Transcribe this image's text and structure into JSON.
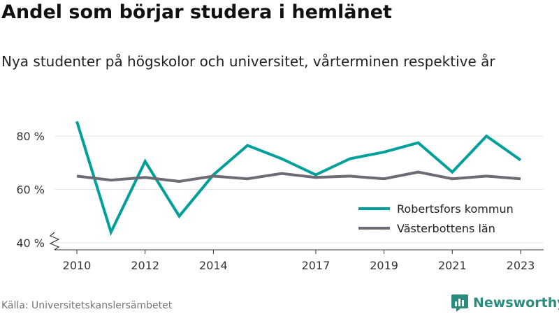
{
  "title": "Andel som börjar studera i hemlänet",
  "subtitle": "Nya studenter på högskolor och universitet, vårterminen respektive år",
  "source": "Källa: Universitetskanslersämbetet",
  "brand": "Newsworthy",
  "colors": {
    "series1": "#00a09a",
    "series2": "#6d6b73",
    "axis": "#333333",
    "grid": "#e6e6e6",
    "brand": "#2a8c7e"
  },
  "chart_data": {
    "type": "line",
    "title": "Andel som börjar studera i hemlänet",
    "ylabel": "",
    "xlabel": "",
    "xlim": [
      2010,
      2023
    ],
    "ylim": [
      40,
      85
    ],
    "y_axis_break": true,
    "grid": "horizontal",
    "legend_position": "bottom-right",
    "x_ticks": [
      2010,
      2012,
      2014,
      2017,
      2019,
      2021,
      2023
    ],
    "y_ticks": [
      {
        "value": 40,
        "label": "40 %"
      },
      {
        "value": 60,
        "label": "60 %"
      },
      {
        "value": 80,
        "label": "80 %"
      }
    ],
    "x": [
      2010,
      2011,
      2012,
      2013,
      2014,
      2015,
      2016,
      2017,
      2018,
      2019,
      2020,
      2021,
      2022,
      2023
    ],
    "series": [
      {
        "name": "Robertsfors kommun",
        "color": "#00a09a",
        "values": [
          85.5,
          44,
          70.5,
          50,
          65.5,
          76.5,
          71.5,
          65.5,
          71.5,
          74,
          77.5,
          66.5,
          80,
          71
        ]
      },
      {
        "name": "Västerbottens län",
        "color": "#6d6b73",
        "values": [
          65,
          63.5,
          64.5,
          63,
          65,
          64,
          66,
          64.5,
          65,
          64,
          66.5,
          64,
          65,
          64
        ]
      }
    ]
  }
}
